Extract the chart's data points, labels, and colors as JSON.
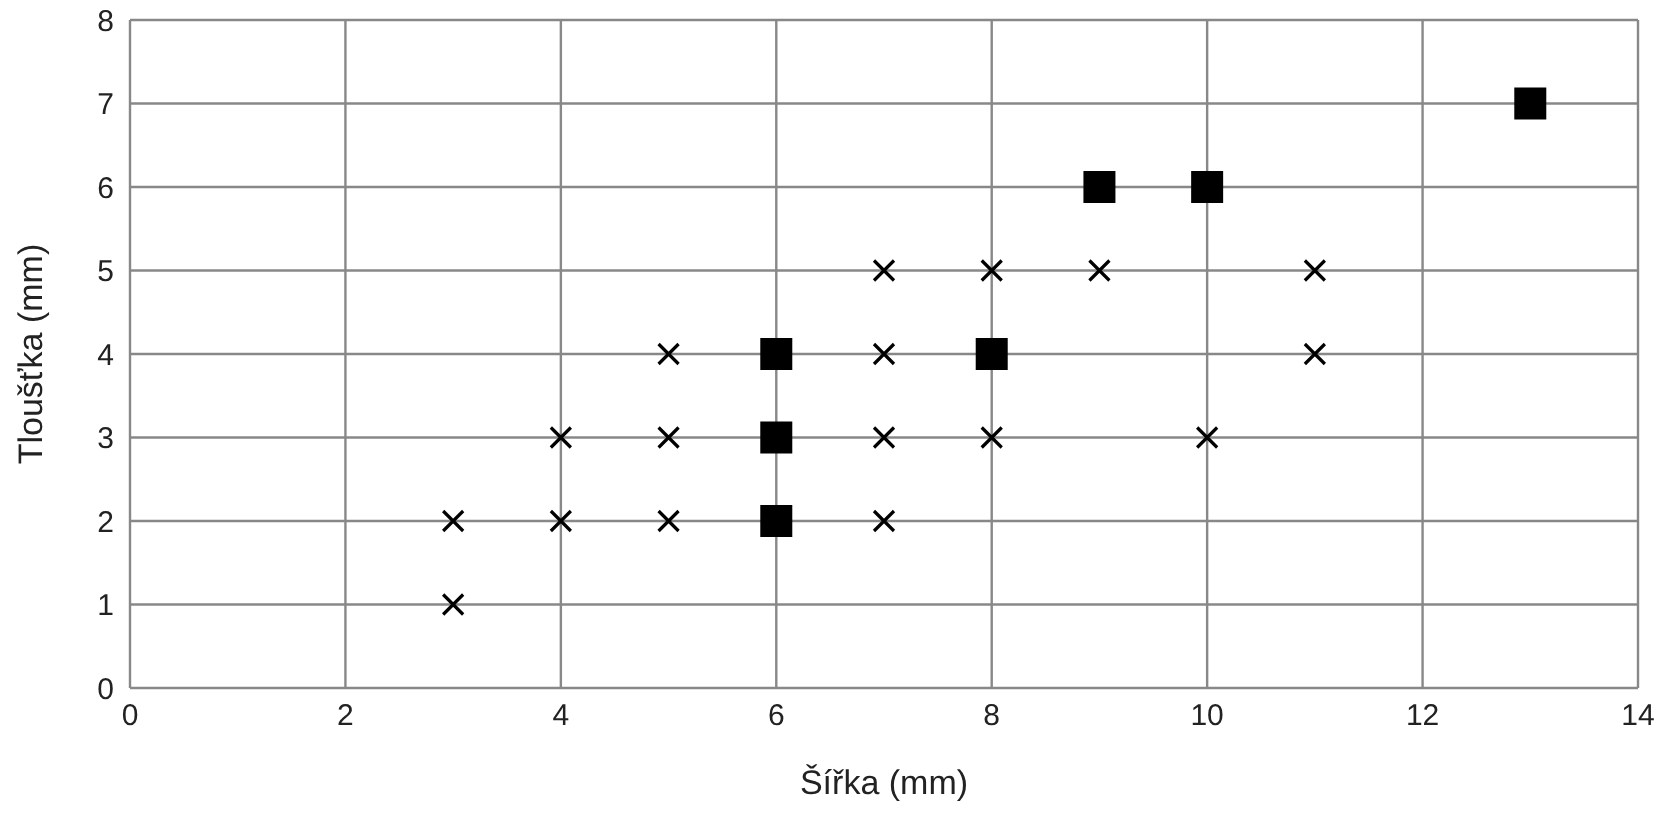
{
  "chart_data": {
    "type": "scatter",
    "xlabel": "Šířka (mm)",
    "ylabel": "Tloušťka (mm)",
    "xlim": [
      0,
      14
    ],
    "xticks": [
      0,
      2,
      4,
      6,
      8,
      10,
      12,
      14
    ],
    "ylim": [
      0,
      8
    ],
    "yticks": [
      0,
      1,
      2,
      3,
      4,
      5,
      6,
      7,
      8
    ],
    "grid": true,
    "legend": false,
    "series": [
      {
        "color": "#000000",
        "marker": "cross",
        "x": [
          3,
          3,
          4,
          4,
          5,
          5,
          5,
          7,
          7,
          7,
          7,
          8,
          8,
          9,
          10,
          11,
          11
        ],
        "values": [
          1,
          2,
          2,
          3,
          2,
          3,
          4,
          2,
          3,
          4,
          5,
          3,
          5,
          5,
          3,
          4,
          5
        ]
      },
      {
        "color": "#000000",
        "marker": "square",
        "x": [
          6,
          6,
          6,
          8,
          9,
          10,
          13
        ],
        "values": [
          2,
          3,
          4,
          4,
          6,
          6,
          7
        ]
      }
    ]
  }
}
